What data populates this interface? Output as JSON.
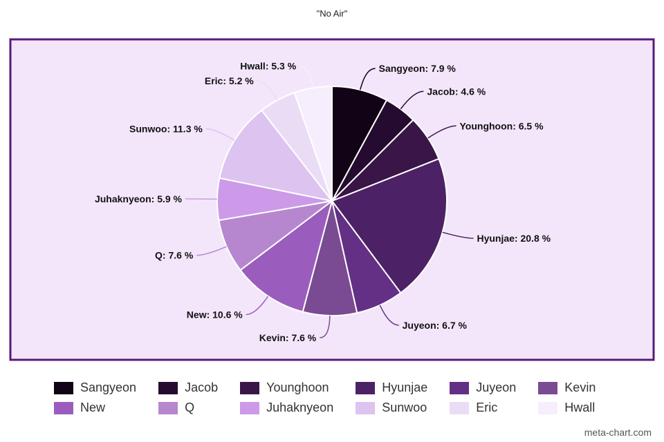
{
  "title": "\"No Air\"",
  "watermark": "meta-chart.com",
  "colors": {
    "plot_background": "#f3e6fb",
    "plot_border": "#5a1a7a"
  },
  "chart_data": {
    "type": "pie",
    "title": "\"No Air\"",
    "legend_position": "bottom",
    "slices": [
      {
        "name": "Sangyeon",
        "value": 7.9,
        "label": "Sangyeon: 7.9 %",
        "color": "#120416"
      },
      {
        "name": "Jacob",
        "value": 4.6,
        "label": "Jacob: 4.6 %",
        "color": "#260b30"
      },
      {
        "name": "Younghoon",
        "value": 6.5,
        "label": "Younghoon: 6.5 %",
        "color": "#3a1547"
      },
      {
        "name": "Hyunjae",
        "value": 20.8,
        "label": "Hyunjae: 20.8 %",
        "color": "#4d2165"
      },
      {
        "name": "Juyeon",
        "value": 6.7,
        "label": "Juyeon: 6.7 %",
        "color": "#633085"
      },
      {
        "name": "Kevin",
        "value": 7.6,
        "label": "Kevin: 7.6 %",
        "color": "#7a4a92"
      },
      {
        "name": "New",
        "value": 10.6,
        "label": "New: 10.6 %",
        "color": "#9b5dbd"
      },
      {
        "name": "Q",
        "value": 7.6,
        "label": "Q: 7.6 %",
        "color": "#b687cf"
      },
      {
        "name": "Juhaknyeon",
        "value": 5.9,
        "label": "Juhaknyeon: 5.9 %",
        "color": "#cc9ae8"
      },
      {
        "name": "Sunwoo",
        "value": 11.3,
        "label": "Sunwoo: 11.3 %",
        "color": "#dcc3f0"
      },
      {
        "name": "Eric",
        "value": 5.2,
        "label": "Eric: 5.2 %",
        "color": "#ebdcf6"
      },
      {
        "name": "Hwall",
        "value": 5.3,
        "label": "Hwall: 5.3 %",
        "color": "#f6eefc"
      }
    ]
  }
}
